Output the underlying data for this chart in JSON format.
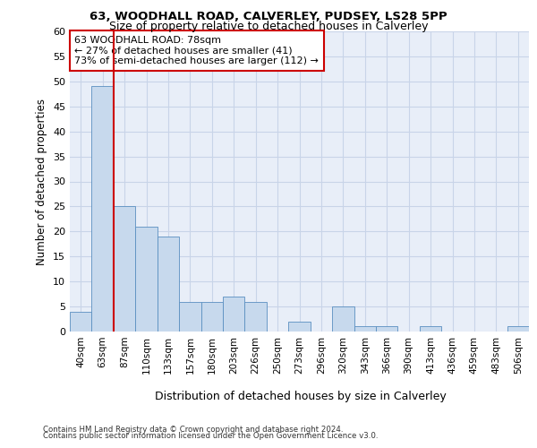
{
  "title1": "63, WOODHALL ROAD, CALVERLEY, PUDSEY, LS28 5PP",
  "title2": "Size of property relative to detached houses in Calverley",
  "xlabel": "Distribution of detached houses by size in Calverley",
  "ylabel": "Number of detached properties",
  "bins": [
    "40sqm",
    "63sqm",
    "87sqm",
    "110sqm",
    "133sqm",
    "157sqm",
    "180sqm",
    "203sqm",
    "226sqm",
    "250sqm",
    "273sqm",
    "296sqm",
    "320sqm",
    "343sqm",
    "366sqm",
    "390sqm",
    "413sqm",
    "436sqm",
    "459sqm",
    "483sqm",
    "506sqm"
  ],
  "values": [
    4,
    49,
    25,
    21,
    19,
    6,
    6,
    7,
    6,
    0,
    2,
    0,
    5,
    1,
    1,
    0,
    1,
    0,
    0,
    0,
    1
  ],
  "bar_color": "#c7d9ed",
  "bar_edge_color": "#5a8fc0",
  "vline_color": "#cc0000",
  "annotation_text": "63 WOODHALL ROAD: 78sqm\n← 27% of detached houses are smaller (41)\n73% of semi-detached houses are larger (112) →",
  "annotation_box_color": "#ffffff",
  "annotation_box_edge": "#cc0000",
  "ylim": [
    0,
    60
  ],
  "yticks": [
    0,
    5,
    10,
    15,
    20,
    25,
    30,
    35,
    40,
    45,
    50,
    55,
    60
  ],
  "grid_color": "#c8d4e8",
  "bg_color": "#e8eef8",
  "footer1": "Contains HM Land Registry data © Crown copyright and database right 2024.",
  "footer2": "Contains public sector information licensed under the Open Government Licence v3.0."
}
